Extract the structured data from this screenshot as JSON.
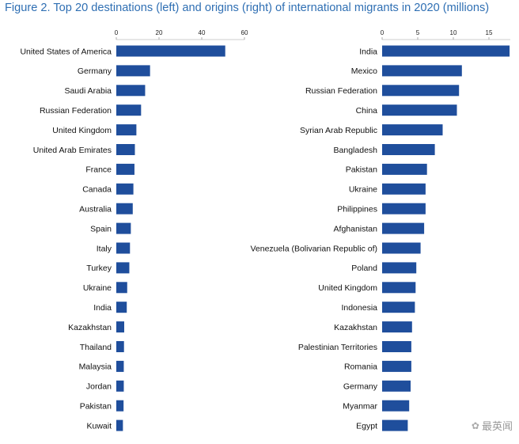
{
  "title": "Figure 2. Top 20 destinations (left) and origins (right) of international migrants in 2020 (millions)",
  "watermark": "最英闻",
  "chart_data": [
    {
      "type": "bar",
      "orientation": "horizontal",
      "title": "",
      "xlim": [
        0,
        60
      ],
      "xticks": [
        0,
        20,
        40,
        60
      ],
      "bar_color": "#1f4e9c",
      "categories": [
        "United States of America",
        "Germany",
        "Saudi Arabia",
        "Russian Federation",
        "United Kingdom",
        "United Arab Emirates",
        "France",
        "Canada",
        "Australia",
        "Spain",
        "Italy",
        "Turkey",
        "Ukraine",
        "India",
        "Kazakhstan",
        "Thailand",
        "Malaysia",
        "Jordan",
        "Pakistan",
        "Kuwait"
      ],
      "values": [
        51,
        15.8,
        13.5,
        11.6,
        9.4,
        8.7,
        8.5,
        8.0,
        7.7,
        6.8,
        6.4,
        6.1,
        5.1,
        4.9,
        3.7,
        3.6,
        3.5,
        3.5,
        3.4,
        3.1
      ]
    },
    {
      "type": "bar",
      "orientation": "horizontal",
      "title": "",
      "xlim": [
        0,
        18
      ],
      "xticks": [
        0,
        5,
        10,
        15
      ],
      "bar_color": "#1f4e9c",
      "categories": [
        "India",
        "Mexico",
        "Russian Federation",
        "China",
        "Syrian Arab Republic",
        "Bangladesh",
        "Pakistan",
        "Ukraine",
        "Philippines",
        "Afghanistan",
        "Venezuela (Bolivarian Republic of)",
        "Poland",
        "United Kingdom",
        "Indonesia",
        "Kazakhstan",
        "Palestinian Territories",
        "Romania",
        "Germany",
        "Myanmar",
        "Egypt"
      ],
      "values": [
        17.9,
        11.2,
        10.8,
        10.5,
        8.5,
        7.4,
        6.3,
        6.1,
        6.1,
        5.9,
        5.4,
        4.8,
        4.7,
        4.6,
        4.2,
        4.1,
        4.1,
        4.0,
        3.8,
        3.6
      ]
    }
  ]
}
